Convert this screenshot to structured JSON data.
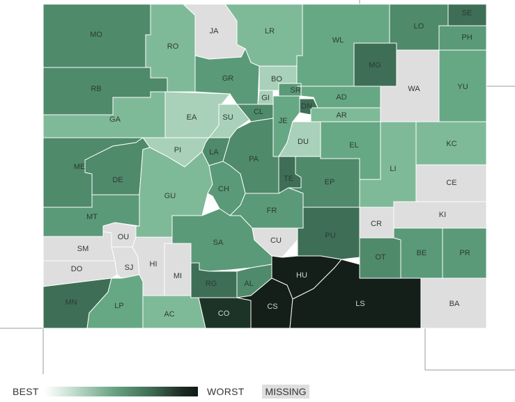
{
  "legend": {
    "best_label": "BEST",
    "worst_label": "WORST",
    "missing_label": "MISSING"
  },
  "colors": {
    "c1": "#a9d0b9",
    "c2": "#7fba98",
    "c3": "#66a884",
    "c4": "#5a9a78",
    "c5": "#4f8a6b",
    "c6": "#3e6f56",
    "c7": "#2a4a3a",
    "c8": "#1c3428",
    "c9": "#141f19",
    "missing": "#dedede",
    "outline": "#999999"
  },
  "counties": [
    {
      "code": "MO",
      "cls": "c5"
    },
    {
      "code": "RO",
      "cls": "c2"
    },
    {
      "code": "JA",
      "cls": "missing"
    },
    {
      "code": "LR",
      "cls": "c2"
    },
    {
      "code": "WL",
      "cls": "c3"
    },
    {
      "code": "LO",
      "cls": "c5"
    },
    {
      "code": "SE",
      "cls": "c6"
    },
    {
      "code": "PH",
      "cls": "c4"
    },
    {
      "code": "RB",
      "cls": "c5"
    },
    {
      "code": "GR",
      "cls": "c4"
    },
    {
      "code": "BO",
      "cls": "c1"
    },
    {
      "code": "MG",
      "cls": "c6"
    },
    {
      "code": "WA",
      "cls": "missing"
    },
    {
      "code": "YU",
      "cls": "c3"
    },
    {
      "code": "GI",
      "cls": "c1"
    },
    {
      "code": "SR",
      "cls": "c4"
    },
    {
      "code": "AD",
      "cls": "c3"
    },
    {
      "code": "DN",
      "cls": "c6"
    },
    {
      "code": "AR",
      "cls": "c2"
    },
    {
      "code": "GA",
      "cls": "c2"
    },
    {
      "code": "EA",
      "cls": "c1"
    },
    {
      "code": "SU",
      "cls": "c1"
    },
    {
      "code": "CL",
      "cls": "c5"
    },
    {
      "code": "JE",
      "cls": "c3"
    },
    {
      "code": "DU",
      "cls": "c1"
    },
    {
      "code": "EL",
      "cls": "c3"
    },
    {
      "code": "KC",
      "cls": "c2"
    },
    {
      "code": "PI",
      "cls": "c1"
    },
    {
      "code": "LA",
      "cls": "c5"
    },
    {
      "code": "ME",
      "cls": "c5"
    },
    {
      "code": "DE",
      "cls": "c5"
    },
    {
      "code": "PA",
      "cls": "c5"
    },
    {
      "code": "TE",
      "cls": "c6"
    },
    {
      "code": "EP",
      "cls": "c5"
    },
    {
      "code": "LI",
      "cls": "c2"
    },
    {
      "code": "CE",
      "cls": "missing"
    },
    {
      "code": "GU",
      "cls": "c2"
    },
    {
      "code": "CH",
      "cls": "c4"
    },
    {
      "code": "MT",
      "cls": "c4"
    },
    {
      "code": "FR",
      "cls": "c4"
    },
    {
      "code": "KI",
      "cls": "missing"
    },
    {
      "code": "CR",
      "cls": "missing"
    },
    {
      "code": "OU",
      "cls": "missing"
    },
    {
      "code": "SM",
      "cls": "missing"
    },
    {
      "code": "SA",
      "cls": "c4"
    },
    {
      "code": "CU",
      "cls": "missing"
    },
    {
      "code": "PU",
      "cls": "c6"
    },
    {
      "code": "BE",
      "cls": "c4"
    },
    {
      "code": "PR",
      "cls": "c4"
    },
    {
      "code": "OT",
      "cls": "c5"
    },
    {
      "code": "DO",
      "cls": "missing"
    },
    {
      "code": "SJ",
      "cls": "missing"
    },
    {
      "code": "HI",
      "cls": "missing"
    },
    {
      "code": "MI",
      "cls": "missing"
    },
    {
      "code": "HU",
      "cls": "c9"
    },
    {
      "code": "RG",
      "cls": "c6"
    },
    {
      "code": "AL",
      "cls": "c5"
    },
    {
      "code": "MN",
      "cls": "c6"
    },
    {
      "code": "LP",
      "cls": "c3"
    },
    {
      "code": "AC",
      "cls": "c2"
    },
    {
      "code": "CO",
      "cls": "c8"
    },
    {
      "code": "CS",
      "cls": "c9"
    },
    {
      "code": "LS",
      "cls": "c9"
    },
    {
      "code": "BA",
      "cls": "missing"
    }
  ]
}
